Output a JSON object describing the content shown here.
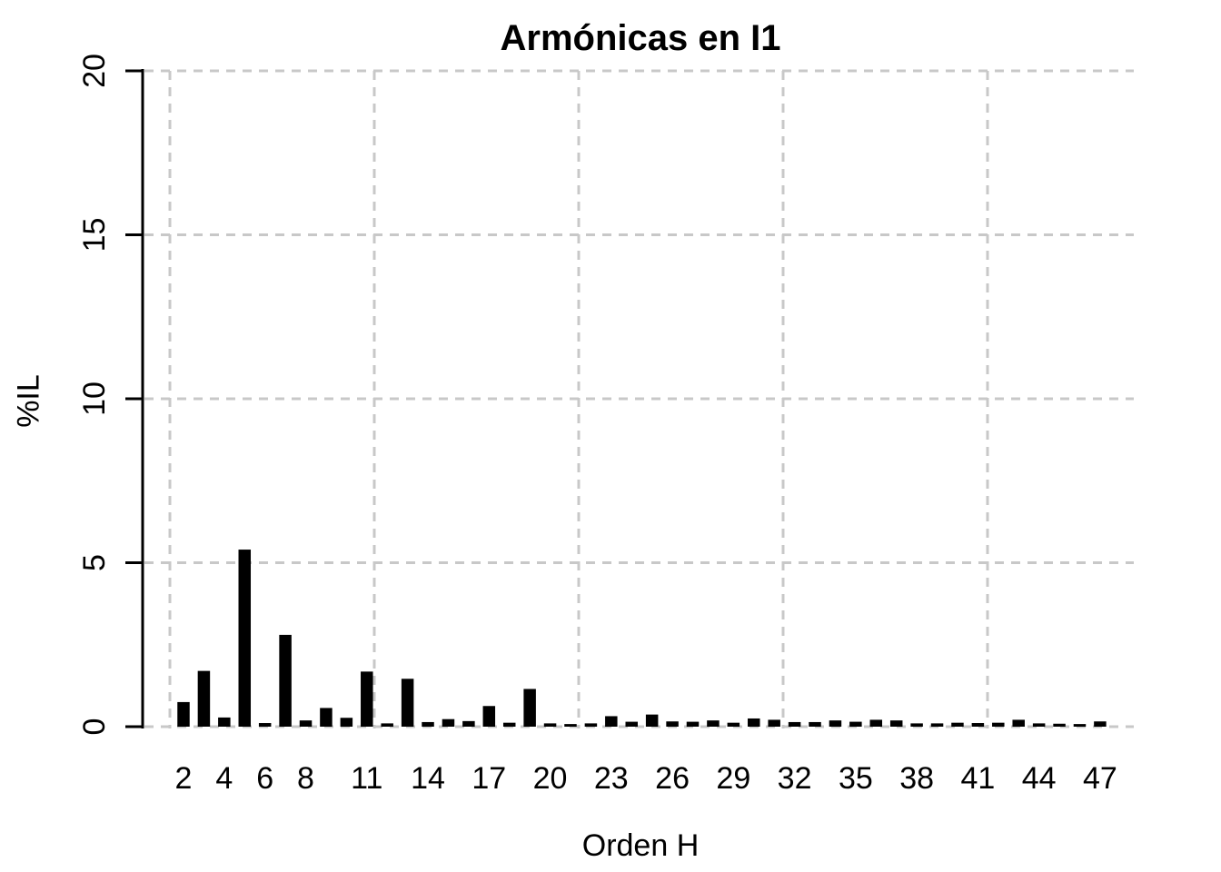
{
  "chart_data": {
    "type": "bar",
    "title": "Armónicas en I1",
    "xlabel": "Orden H",
    "ylabel": "%IL",
    "x": [
      2,
      3,
      4,
      5,
      6,
      7,
      8,
      9,
      10,
      11,
      12,
      13,
      14,
      15,
      16,
      17,
      18,
      19,
      20,
      21,
      22,
      23,
      24,
      25,
      26,
      27,
      28,
      29,
      30,
      31,
      32,
      33,
      34,
      35,
      36,
      37,
      38,
      39,
      40,
      41,
      42,
      43,
      44,
      45,
      46,
      47
    ],
    "values": [
      0.75,
      1.7,
      0.28,
      5.4,
      0.11,
      2.8,
      0.19,
      0.57,
      0.27,
      1.68,
      0.1,
      1.46,
      0.14,
      0.23,
      0.17,
      0.63,
      0.12,
      1.15,
      0.1,
      0.08,
      0.1,
      0.32,
      0.15,
      0.37,
      0.16,
      0.15,
      0.19,
      0.12,
      0.25,
      0.21,
      0.14,
      0.14,
      0.19,
      0.15,
      0.21,
      0.19,
      0.1,
      0.1,
      0.12,
      0.11,
      0.12,
      0.21,
      0.1,
      0.09,
      0.08,
      0.16
    ],
    "x_tick_labels": [
      "2",
      "4",
      "6",
      "8",
      "11",
      "14",
      "17",
      "20",
      "23",
      "26",
      "29",
      "32",
      "35",
      "38",
      "41",
      "44",
      "47"
    ],
    "y_ticks": [
      "0",
      "5",
      "10",
      "15",
      "20"
    ],
    "ylim": [
      0,
      20
    ],
    "grid": "dashed",
    "grid_color": "#c8c8c8",
    "bar_color": "#000000",
    "axis_color": "#000000",
    "legend": "none"
  }
}
